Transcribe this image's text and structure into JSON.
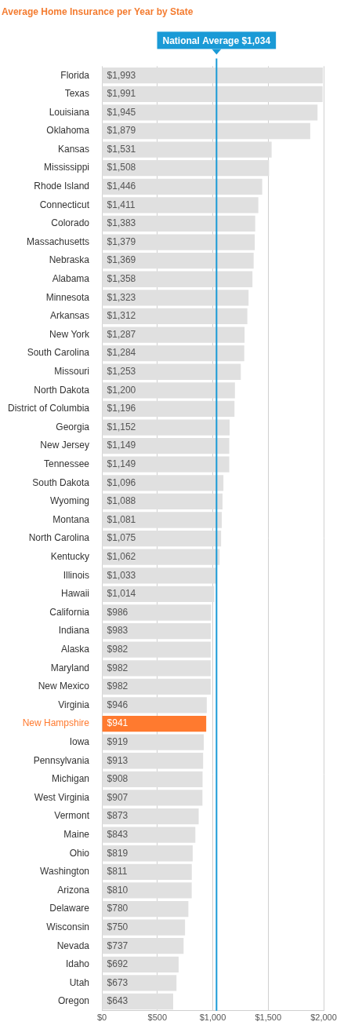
{
  "chart_data": {
    "type": "bar",
    "orientation": "horizontal",
    "title": "Average Home Insurance per Year by State",
    "categories": [
      "Florida",
      "Texas",
      "Louisiana",
      "Oklahoma",
      "Kansas",
      "Mississippi",
      "Rhode Island",
      "Connecticut",
      "Colorado",
      "Massachusetts",
      "Nebraska",
      "Alabama",
      "Minnesota",
      "Arkansas",
      "New York",
      "South Carolina",
      "Missouri",
      "North Dakota",
      "District of Columbia",
      "Georgia",
      "New Jersey",
      "Tennessee",
      "South Dakota",
      "Wyoming",
      "Montana",
      "North Carolina",
      "Kentucky",
      "Illinois",
      "Hawaii",
      "California",
      "Indiana",
      "Alaska",
      "Maryland",
      "New Mexico",
      "Virginia",
      "New Hampshire",
      "Iowa",
      "Pennsylvania",
      "Michigan",
      "West Virginia",
      "Vermont",
      "Maine",
      "Ohio",
      "Washington",
      "Arizona",
      "Delaware",
      "Wisconsin",
      "Nevada",
      "Idaho",
      "Utah",
      "Oregon"
    ],
    "values": [
      1993,
      1991,
      1945,
      1879,
      1531,
      1508,
      1446,
      1411,
      1383,
      1379,
      1369,
      1358,
      1323,
      1312,
      1287,
      1284,
      1253,
      1200,
      1196,
      1152,
      1149,
      1149,
      1096,
      1088,
      1081,
      1075,
      1062,
      1033,
      1014,
      986,
      983,
      982,
      982,
      982,
      946,
      941,
      919,
      913,
      908,
      907,
      873,
      843,
      819,
      811,
      810,
      780,
      750,
      737,
      692,
      673,
      643
    ],
    "value_labels": [
      "$1,993",
      "$1,991",
      "$1,945",
      "$1,879",
      "$1,531",
      "$1,508",
      "$1,446",
      "$1,411",
      "$1,383",
      "$1,379",
      "$1,369",
      "$1,358",
      "$1,323",
      "$1,312",
      "$1,287",
      "$1,284",
      "$1,253",
      "$1,200",
      "$1,196",
      "$1,152",
      "$1,149",
      "$1,149",
      "$1,096",
      "$1,088",
      "$1,081",
      "$1,075",
      "$1,062",
      "$1,033",
      "$1,014",
      "$986",
      "$983",
      "$982",
      "$982",
      "$982",
      "$946",
      "$941",
      "$919",
      "$913",
      "$908",
      "$907",
      "$873",
      "$843",
      "$819",
      "$811",
      "$810",
      "$780",
      "$750",
      "$737",
      "$692",
      "$673",
      "$643"
    ],
    "colors": [
      "#e0e0e0",
      "#e0e0e0",
      "#e0e0e0",
      "#e0e0e0",
      "#e0e0e0",
      "#e0e0e0",
      "#e0e0e0",
      "#e0e0e0",
      "#e0e0e0",
      "#e0e0e0",
      "#e0e0e0",
      "#e0e0e0",
      "#e0e0e0",
      "#e0e0e0",
      "#e0e0e0",
      "#e0e0e0",
      "#e0e0e0",
      "#e0e0e0",
      "#e0e0e0",
      "#e0e0e0",
      "#e0e0e0",
      "#e0e0e0",
      "#e0e0e0",
      "#e0e0e0",
      "#e0e0e0",
      "#e0e0e0",
      "#e0e0e0",
      "#e0e0e0",
      "#e0e0e0",
      "#e0e0e0",
      "#e0e0e0",
      "#e0e0e0",
      "#e0e0e0",
      "#e0e0e0",
      "#e0e0e0",
      "#ff7a2f",
      "#e0e0e0",
      "#e0e0e0",
      "#e0e0e0",
      "#e0e0e0",
      "#e0e0e0",
      "#e0e0e0",
      "#e0e0e0",
      "#e0e0e0",
      "#e0e0e0",
      "#e0e0e0",
      "#e0e0e0",
      "#e0e0e0",
      "#e0e0e0",
      "#e0e0e0",
      "#e0e0e0"
    ],
    "xlim": [
      0,
      2000
    ],
    "xticks": [
      {
        "value": 0,
        "label": "$0"
      },
      {
        "value": 500,
        "label": "$500"
      },
      {
        "value": 1000,
        "label": "$1,000"
      },
      {
        "value": 1500,
        "label": "$1,500"
      },
      {
        "value": 2000,
        "label": "$2,000"
      }
    ],
    "grid": true,
    "data_labels": true,
    "annotations": [
      {
        "value": 1034,
        "label": "National Average $1,034"
      }
    ]
  }
}
